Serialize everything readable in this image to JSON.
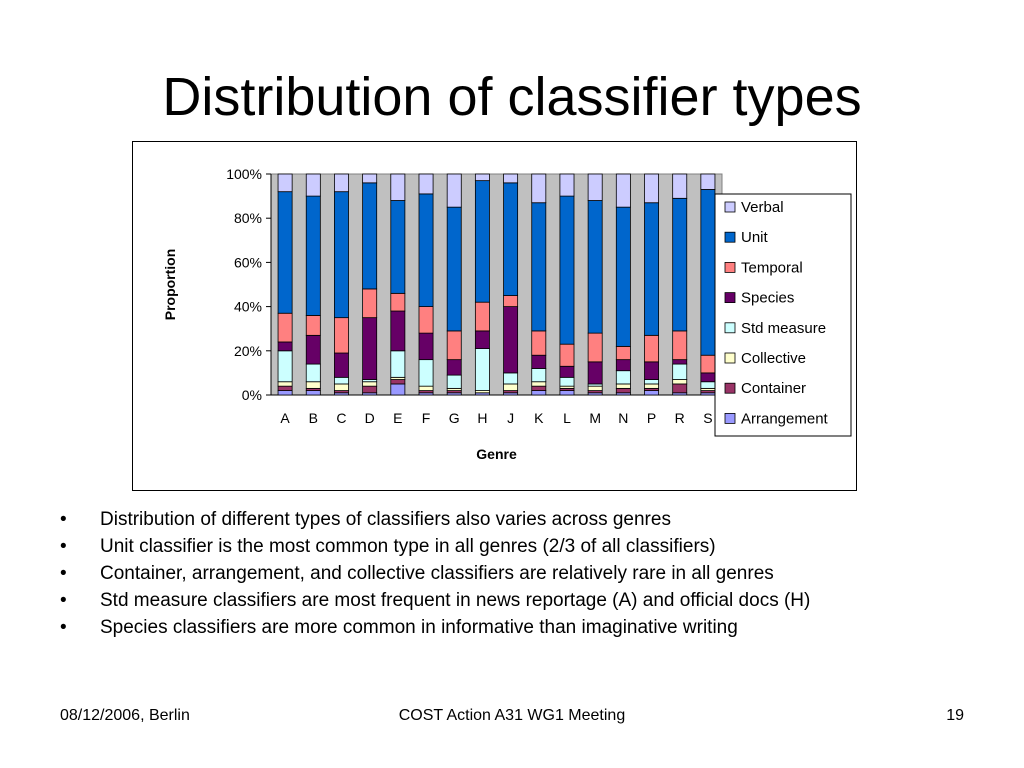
{
  "slide": {
    "title": "Distribution of classifier types",
    "bullets": [
      "Distribution of different types of classifiers also varies across genres",
      "Unit classifier is the most common type in all genres (2/3 of all classifiers)",
      "Container, arrangement, and collective classifiers are relatively rare in all genres",
      "Std measure classifiers are most frequent in news reportage (A) and official docs (H)",
      "Species classifiers are more common in informative than imaginative writing"
    ],
    "bullet_symbol": "•",
    "footer": {
      "left": "08/12/2006, Berlin",
      "center": "COST Action A31 WG1 Meeting",
      "right": "19"
    }
  },
  "chart_data": {
    "type": "bar",
    "stacked": true,
    "percent": true,
    "xlabel": "Genre",
    "ylabel": "Proportion",
    "ylim": [
      0,
      100
    ],
    "yticks": [
      "0%",
      "20%",
      "40%",
      "60%",
      "80%",
      "100%"
    ],
    "plot_background": "#c0c0c0",
    "legend_position": "right",
    "categories": [
      "A",
      "B",
      "C",
      "D",
      "E",
      "F",
      "G",
      "H",
      "J",
      "K",
      "L",
      "M",
      "N",
      "P",
      "R",
      "S"
    ],
    "series": [
      {
        "name": "Arrangement",
        "color": "#9999ff",
        "values": [
          2,
          2,
          1,
          1,
          5,
          1,
          1,
          1,
          1,
          2,
          2,
          1,
          1,
          2,
          1,
          1
        ]
      },
      {
        "name": "Container",
        "color": "#993366",
        "values": [
          2,
          1,
          1,
          3,
          2,
          1,
          1,
          0,
          1,
          2,
          1,
          1,
          2,
          1,
          4,
          1
        ]
      },
      {
        "name": "Collective",
        "color": "#ffffcc",
        "values": [
          2,
          3,
          3,
          2,
          1,
          2,
          1,
          1,
          3,
          2,
          1,
          2,
          2,
          2,
          2,
          1
        ]
      },
      {
        "name": "Std measure",
        "color": "#ccffff",
        "values": [
          14,
          8,
          3,
          1,
          12,
          12,
          6,
          19,
          5,
          6,
          4,
          1,
          6,
          2,
          7,
          3
        ]
      },
      {
        "name": "Species",
        "color": "#660066",
        "values": [
          4,
          13,
          11,
          28,
          18,
          12,
          7,
          8,
          30,
          6,
          5,
          10,
          5,
          8,
          2,
          4
        ]
      },
      {
        "name": "Temporal",
        "color": "#ff8080",
        "values": [
          13,
          9,
          16,
          13,
          8,
          12,
          13,
          13,
          5,
          11,
          10,
          13,
          6,
          12,
          13,
          8
        ]
      },
      {
        "name": "Unit",
        "color": "#0066cc",
        "values": [
          55,
          54,
          57,
          48,
          42,
          51,
          56,
          55,
          51,
          58,
          67,
          60,
          63,
          60,
          60,
          75
        ]
      },
      {
        "name": "Verbal",
        "color": "#ccccff",
        "values": [
          8,
          10,
          8,
          4,
          12,
          9,
          15,
          3,
          4,
          13,
          10,
          12,
          15,
          13,
          11,
          7
        ]
      }
    ]
  }
}
